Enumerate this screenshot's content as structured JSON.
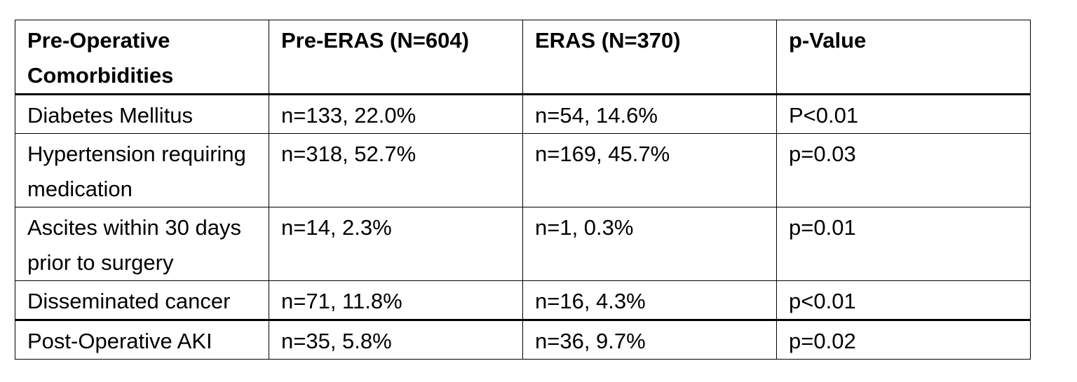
{
  "table": {
    "headers": [
      "Pre-Operative Comorbidities",
      "Pre-ERAS (N=604)",
      "ERAS (N=370)",
      "p-Value"
    ],
    "rows": [
      [
        "Diabetes Mellitus",
        "n=133, 22.0%",
        "n=54, 14.6%",
        "P<0.01"
      ],
      [
        "Hypertension requiring medication",
        "n=318, 52.7%",
        "n=169, 45.7%",
        "p=0.03"
      ],
      [
        "Ascites within 30 days prior to surgery",
        "n=14, 2.3%",
        "n=1, 0.3%",
        "p=0.01"
      ],
      [
        "Disseminated cancer",
        "n=71, 11.8%",
        "n=16, 4.3%",
        "p<0.01"
      ],
      [
        "Post-Operative AKI",
        "n=35, 5.8%",
        "n=36, 9.7%",
        "p=0.02"
      ]
    ]
  }
}
